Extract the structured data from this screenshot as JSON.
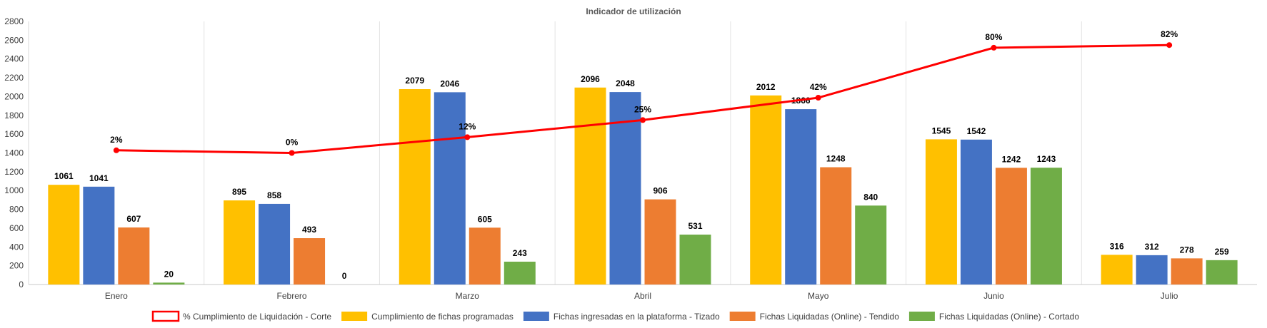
{
  "chart_data": {
    "type": "bar",
    "title": "Indicador de utilización",
    "xlabel": "",
    "ylabel": "",
    "ylim": [
      0,
      2800
    ],
    "yticks": [
      0,
      200,
      400,
      600,
      800,
      1000,
      1200,
      1400,
      1600,
      1800,
      2000,
      2200,
      2400,
      2600,
      2800
    ],
    "categories": [
      "Enero",
      "Febrero",
      "Marzo",
      "Abril",
      "Mayo",
      "Junio",
      "Julio"
    ],
    "grid": "vertical",
    "legend_position": "bottom",
    "series": [
      {
        "name": "Cumplimiento de fichas programadas",
        "type": "bar",
        "color": "#FFC000",
        "values": [
          1061,
          895,
          2079,
          2096,
          2012,
          1545,
          316
        ]
      },
      {
        "name": "Fichas ingresadas en la plataforma - Tizado",
        "type": "bar",
        "color": "#4472C4",
        "values": [
          1041,
          858,
          2046,
          2048,
          1866,
          1542,
          312
        ]
      },
      {
        "name": "Fichas Liquidadas (Online) - Tendido",
        "type": "bar",
        "color": "#ED7D31",
        "values": [
          607,
          493,
          605,
          906,
          1248,
          1242,
          278
        ]
      },
      {
        "name": "Fichas Liquidadas (Online) - Cortado",
        "type": "bar",
        "color": "#70AD47",
        "values": [
          20,
          0,
          243,
          531,
          840,
          1243,
          259
        ]
      }
    ],
    "line_series": {
      "name": "% Cumplimiento de Liquidación - Corte",
      "type": "line",
      "color": "#FF0000",
      "values": [
        2,
        0,
        12,
        25,
        42,
        80,
        82
      ],
      "labels": [
        "2%",
        "0%",
        "12%",
        "25%",
        "42%",
        "80%",
        "82%"
      ],
      "ylim": [
        -100,
        100
      ]
    }
  }
}
